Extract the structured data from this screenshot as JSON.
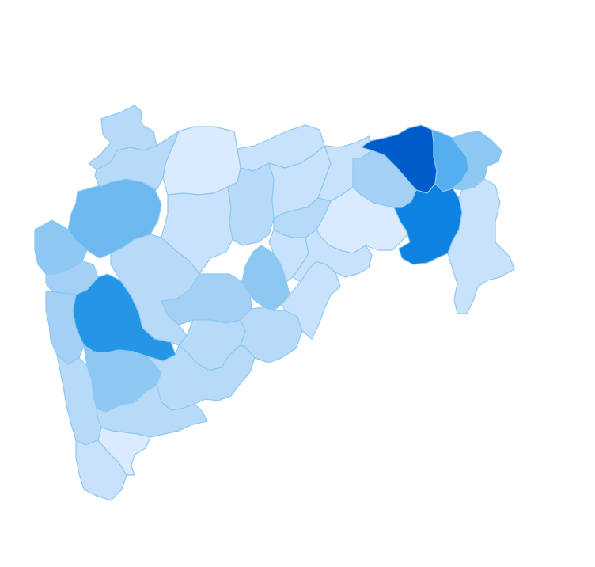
{
  "map": {
    "colors": {
      "background": "#ffffff",
      "border": "#8ec8f2",
      "level_1": "#d9ebfc",
      "level_2": "#c9e2fb",
      "level_3": "#b7daf8",
      "level_4": "#a5d0f6",
      "level_5": "#8dc8f2",
      "level_6": "#6cb9ef",
      "level_7": "#55aeef",
      "level_8": "#2596e6",
      "level_9": "#0d82e0",
      "level_10": "#005ccb"
    },
    "districts": [
      {
        "id": "palghar-thane-north",
        "level": 3
      },
      {
        "id": "nashik",
        "level": 6
      },
      {
        "id": "nandurbar",
        "level": 3
      },
      {
        "id": "dhule",
        "level": 1
      },
      {
        "id": "jalgaon",
        "level": 2
      },
      {
        "id": "thane",
        "level": 5
      },
      {
        "id": "mumbai",
        "level": 4
      },
      {
        "id": "raigad",
        "level": 4
      },
      {
        "id": "ratnagiri",
        "level": 3
      },
      {
        "id": "sindhudurg",
        "level": 2
      },
      {
        "id": "pune",
        "level": 8
      },
      {
        "id": "ahmednagar",
        "level": 3
      },
      {
        "id": "aurangabad",
        "level": 2
      },
      {
        "id": "jalna",
        "level": 3
      },
      {
        "id": "buldhana",
        "level": 2
      },
      {
        "id": "akola",
        "level": 2
      },
      {
        "id": "washim",
        "level": 3
      },
      {
        "id": "amravati",
        "level": 1
      },
      {
        "id": "beed",
        "level": 4
      },
      {
        "id": "parbhani",
        "level": 5
      },
      {
        "id": "hingoli",
        "level": 2
      },
      {
        "id": "osmanabad",
        "level": 3
      },
      {
        "id": "latur",
        "level": 3
      },
      {
        "id": "nanded",
        "level": 2
      },
      {
        "id": "satara",
        "level": 5
      },
      {
        "id": "solapur",
        "level": 3
      },
      {
        "id": "sangli",
        "level": 3
      },
      {
        "id": "kolhapur",
        "level": 1
      },
      {
        "id": "yavatmal",
        "level": 2
      },
      {
        "id": "wardha",
        "level": 4
      },
      {
        "id": "nagpur",
        "level": 10
      },
      {
        "id": "bhandara",
        "level": 7
      },
      {
        "id": "gondia",
        "level": 5
      },
      {
        "id": "chandrapur",
        "level": 9
      },
      {
        "id": "gadchiroli",
        "level": 2
      }
    ]
  }
}
